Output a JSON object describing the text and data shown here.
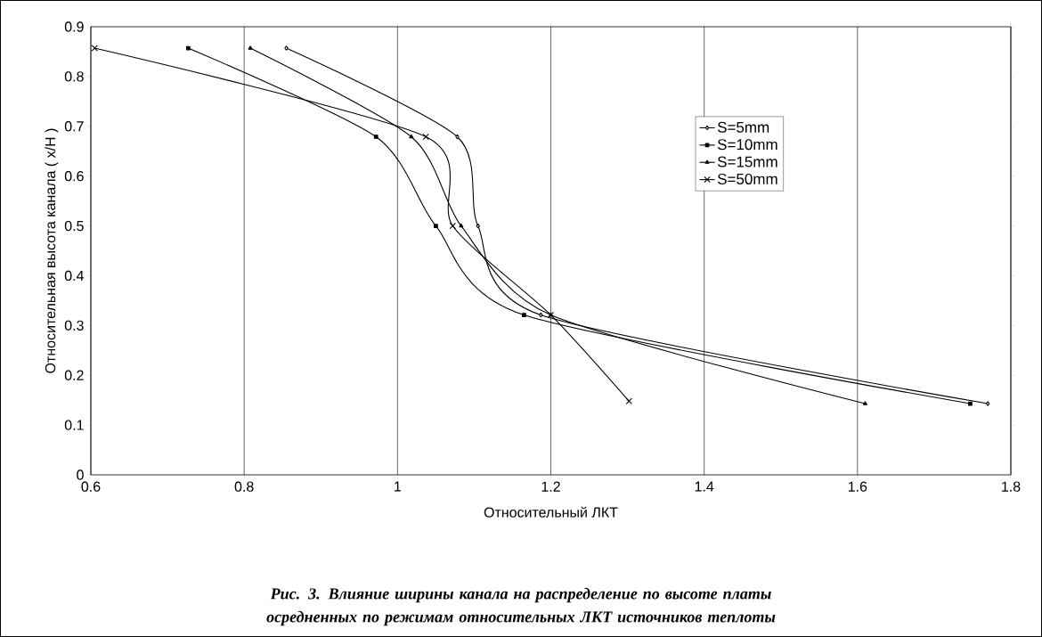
{
  "chart_data": {
    "type": "line",
    "xlabel": "Относительный ЛКТ",
    "ylabel": "Относительная высота канала ( x/H )",
    "xlim": [
      0.6,
      1.8
    ],
    "xticks": [
      0.6,
      0.8,
      1,
      1.2,
      1.4,
      1.6,
      1.8
    ],
    "ylim": [
      0,
      0.9
    ],
    "yticks": [
      0,
      0.1,
      0.2,
      0.3,
      0.4,
      0.5,
      0.6,
      0.7,
      0.8,
      0.9
    ],
    "grid": "x",
    "legend": "top right",
    "series": [
      {
        "name": "S=5mm",
        "color": "#000000",
        "marker": "diamond",
        "x": [
          0.855,
          1.078,
          1.105,
          1.187,
          1.77
        ],
        "values": [
          0.857,
          0.679,
          0.5,
          0.321,
          0.143
        ]
      },
      {
        "name": "S=10mm",
        "color": "#000000",
        "marker": "square",
        "x": [
          0.727,
          0.972,
          1.05,
          1.165,
          1.747
        ],
        "values": [
          0.857,
          0.679,
          0.5,
          0.321,
          0.143
        ]
      },
      {
        "name": "S=15mm",
        "color": "#000000",
        "marker": "triangle",
        "x": [
          0.808,
          1.018,
          1.083,
          1.2,
          1.61
        ],
        "values": [
          0.857,
          0.679,
          0.5,
          0.321,
          0.143
        ]
      },
      {
        "name": "S=50mm",
        "color": "#000000",
        "marker": "cross",
        "x": [
          0.605,
          1.037,
          1.072,
          1.2,
          1.302
        ],
        "values": [
          0.857,
          0.679,
          0.5,
          0.321,
          0.148
        ]
      }
    ],
    "annotations": [
      "*Рис. 3. Влияние ширины канала на распределение по высоте платы осредненных по режимам относительных ЛКТ источников теплоты*"
    ]
  }
}
